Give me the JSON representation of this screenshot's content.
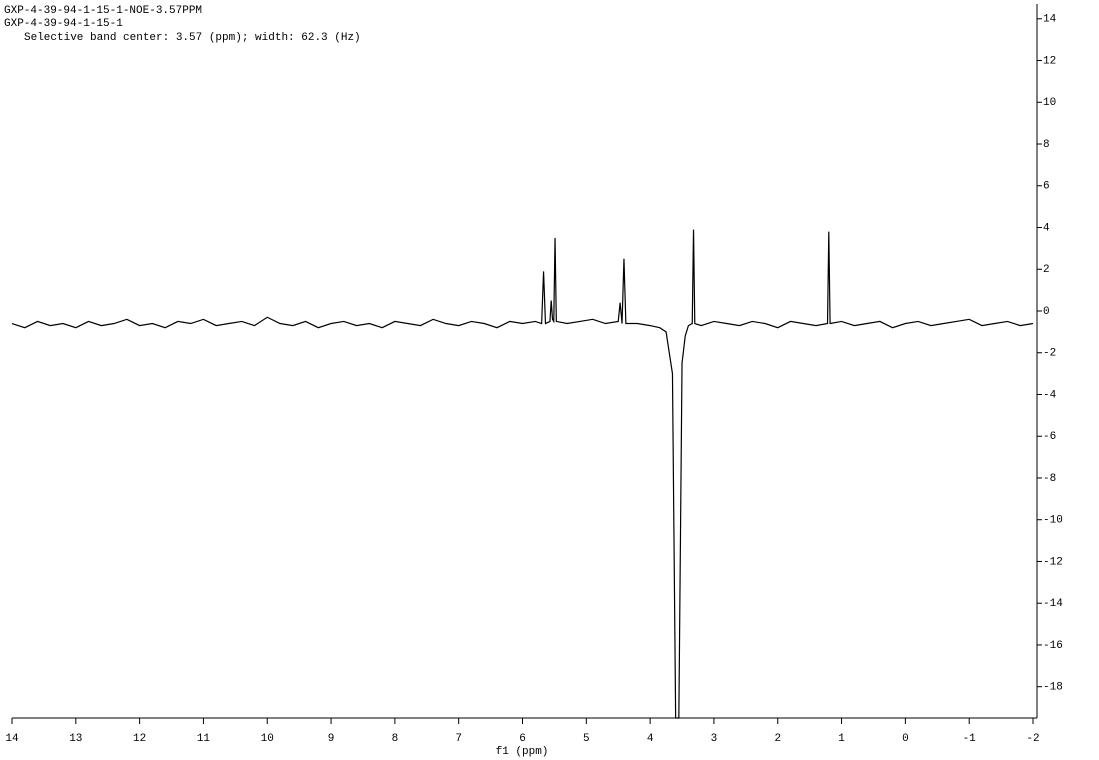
{
  "chart_data": {
    "type": "line",
    "titles": [
      "GXP-4-39-94-1-15-1-NOE-3.57PPM",
      "GXP-4-39-94-1-15-1",
      "Selective band center: 3.57 (ppm); width: 62.3 (Hz)"
    ],
    "x_label": "f1 (ppm)",
    "xlim": [
      14,
      -2
    ],
    "xticks": [
      14,
      13,
      12,
      11,
      10,
      9,
      8,
      7,
      6,
      5,
      4,
      3,
      2,
      1,
      0,
      -1,
      -2
    ],
    "ylim": [
      -19.5,
      14.9
    ],
    "yticks": [
      14,
      12,
      10,
      8,
      6,
      4,
      2,
      0,
      -2,
      -4,
      -6,
      -8,
      -10,
      -12,
      -14,
      -16,
      -18
    ],
    "color": "#000000",
    "x": [
      14.0,
      13.8,
      13.6,
      13.4,
      13.2,
      13.0,
      12.8,
      12.6,
      12.4,
      12.2,
      12.0,
      11.8,
      11.6,
      11.4,
      11.2,
      11.0,
      10.8,
      10.6,
      10.4,
      10.2,
      10.0,
      9.8,
      9.6,
      9.4,
      9.2,
      9.0,
      8.8,
      8.6,
      8.4,
      8.2,
      8.0,
      7.8,
      7.6,
      7.4,
      7.2,
      7.0,
      6.8,
      6.6,
      6.4,
      6.2,
      6.0,
      5.8,
      5.7,
      5.67,
      5.64,
      5.57,
      5.55,
      5.53,
      5.51,
      5.49,
      5.47,
      5.3,
      5.1,
      4.9,
      4.7,
      4.5,
      4.47,
      4.44,
      4.41,
      4.38,
      4.2,
      4.0,
      3.85,
      3.75,
      3.65,
      3.6,
      3.55,
      3.5,
      3.45,
      3.4,
      3.34,
      3.32,
      3.3,
      3.2,
      3.0,
      2.8,
      2.6,
      2.4,
      2.2,
      2.0,
      1.8,
      1.6,
      1.4,
      1.22,
      1.2,
      1.18,
      1.0,
      0.8,
      0.6,
      0.4,
      0.2,
      0.0,
      -0.2,
      -0.4,
      -0.6,
      -0.8,
      -1.0,
      -1.2,
      -1.4,
      -1.6,
      -1.8,
      -2.0
    ],
    "values": [
      -0.6,
      -0.8,
      -0.5,
      -0.7,
      -0.6,
      -0.8,
      -0.5,
      -0.7,
      -0.6,
      -0.4,
      -0.7,
      -0.6,
      -0.8,
      -0.5,
      -0.6,
      -0.4,
      -0.7,
      -0.6,
      -0.5,
      -0.7,
      -0.3,
      -0.6,
      -0.7,
      -0.5,
      -0.8,
      -0.6,
      -0.5,
      -0.7,
      -0.6,
      -0.8,
      -0.5,
      -0.6,
      -0.7,
      -0.4,
      -0.6,
      -0.7,
      -0.5,
      -0.6,
      -0.8,
      -0.5,
      -0.6,
      -0.5,
      -0.6,
      1.9,
      -0.6,
      -0.5,
      0.5,
      -0.4,
      -0.5,
      3.5,
      -0.5,
      -0.6,
      -0.5,
      -0.4,
      -0.6,
      -0.5,
      0.4,
      -0.6,
      2.5,
      -0.6,
      -0.6,
      -0.7,
      -0.8,
      -1.0,
      -3.0,
      -19.5,
      -19.5,
      -2.5,
      -1.2,
      -0.7,
      -0.6,
      3.9,
      -0.6,
      -0.7,
      -0.5,
      -0.6,
      -0.7,
      -0.5,
      -0.6,
      -0.8,
      -0.5,
      -0.6,
      -0.7,
      -0.6,
      3.8,
      -0.6,
      -0.5,
      -0.7,
      -0.6,
      -0.5,
      -0.8,
      -0.6,
      -0.5,
      -0.7,
      -0.6,
      -0.5,
      -0.4,
      -0.7,
      -0.6,
      -0.5,
      -0.7,
      -0.6
    ]
  }
}
